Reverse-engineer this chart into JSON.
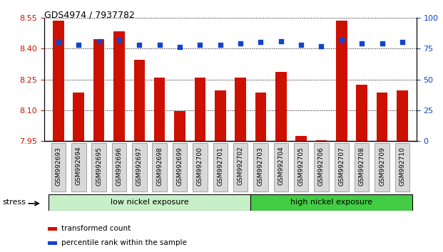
{
  "title": "GDS4974 / 7937782",
  "categories": [
    "GSM992693",
    "GSM992694",
    "GSM992695",
    "GSM992696",
    "GSM992697",
    "GSM992698",
    "GSM992699",
    "GSM992700",
    "GSM992701",
    "GSM992702",
    "GSM992703",
    "GSM992704",
    "GSM992705",
    "GSM992706",
    "GSM992707",
    "GSM992708",
    "GSM992709",
    "GSM992710"
  ],
  "red_values": [
    8.535,
    8.185,
    8.445,
    8.485,
    8.345,
    8.26,
    8.095,
    8.26,
    8.195,
    8.26,
    8.185,
    8.285,
    7.975,
    7.955,
    8.535,
    8.225,
    8.185,
    8.195
  ],
  "blue_values": [
    80,
    78,
    81,
    82,
    78,
    78,
    76,
    78,
    78,
    79,
    80,
    81,
    78,
    77,
    82,
    79,
    79,
    80
  ],
  "y_min": 7.95,
  "y_max": 8.55,
  "y_ticks": [
    7.95,
    8.1,
    8.25,
    8.4,
    8.55
  ],
  "y2_ticks": [
    0,
    25,
    50,
    75,
    100
  ],
  "group1_label": "low nickel exposure",
  "group1_count": 10,
  "group2_label": "high nickel exposure",
  "group_row_label": "stress",
  "legend_red": "transformed count",
  "legend_blue": "percentile rank within the sample",
  "red_color": "#cc1100",
  "blue_color": "#1144cc",
  "bar_width": 0.55,
  "group1_color": "#c8f0c8",
  "group2_color": "#44cc44",
  "bg_color": "#ffffff"
}
